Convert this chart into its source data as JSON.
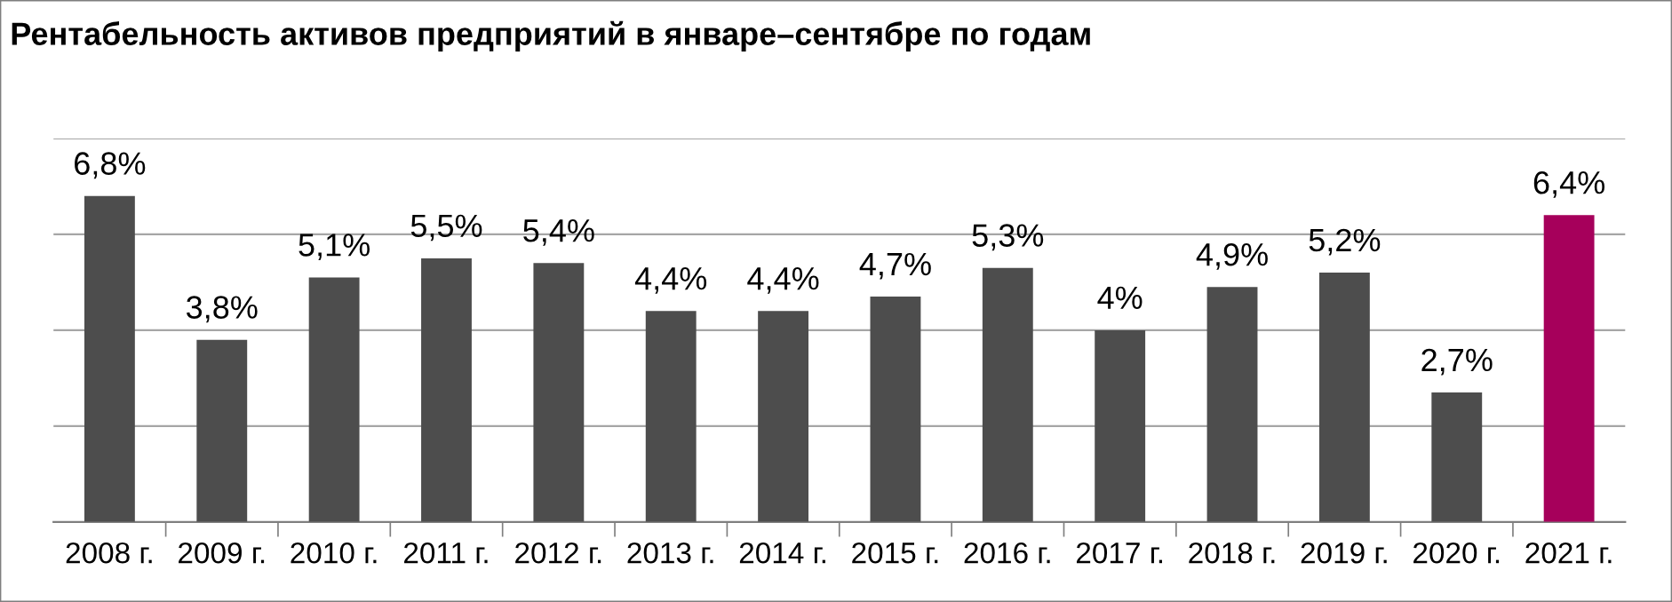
{
  "chart_data": {
    "type": "bar",
    "title": "Рентабельность активов предприятий в январе–сентябре по годам",
    "categories": [
      "2008 г.",
      "2009 г.",
      "2010 г.",
      "2011 г.",
      "2012 г.",
      "2013 г.",
      "2014 г.",
      "2015 г.",
      "2016 г.",
      "2017 г.",
      "2018 г.",
      "2019 г.",
      "2020 г.",
      "2021 г."
    ],
    "values": [
      6.8,
      3.8,
      5.1,
      5.5,
      5.4,
      4.4,
      4.4,
      4.7,
      5.3,
      4,
      4.9,
      5.2,
      2.7,
      6.4
    ],
    "value_labels": [
      "6,8%",
      "3,8%",
      "5,1%",
      "5,5%",
      "5,4%",
      "4,4%",
      "4,4%",
      "4,7%",
      "5,3%",
      "4%",
      "4,9%",
      "5,2%",
      "2,7%",
      "6,4%"
    ],
    "colors": [
      "#4d4d4d",
      "#4d4d4d",
      "#4d4d4d",
      "#4d4d4d",
      "#4d4d4d",
      "#4d4d4d",
      "#4d4d4d",
      "#4d4d4d",
      "#4d4d4d",
      "#4d4d4d",
      "#4d4d4d",
      "#4d4d4d",
      "#4d4d4d",
      "#a6005b"
    ],
    "ylim": [
      0,
      8
    ],
    "yticks": [
      {
        "value": 2,
        "label": null
      },
      {
        "value": 4,
        "label": null
      },
      {
        "value": 6,
        "label": null
      },
      {
        "value": 8,
        "label": null
      }
    ],
    "grid": "y",
    "legend": false,
    "tick_labels": "x"
  }
}
